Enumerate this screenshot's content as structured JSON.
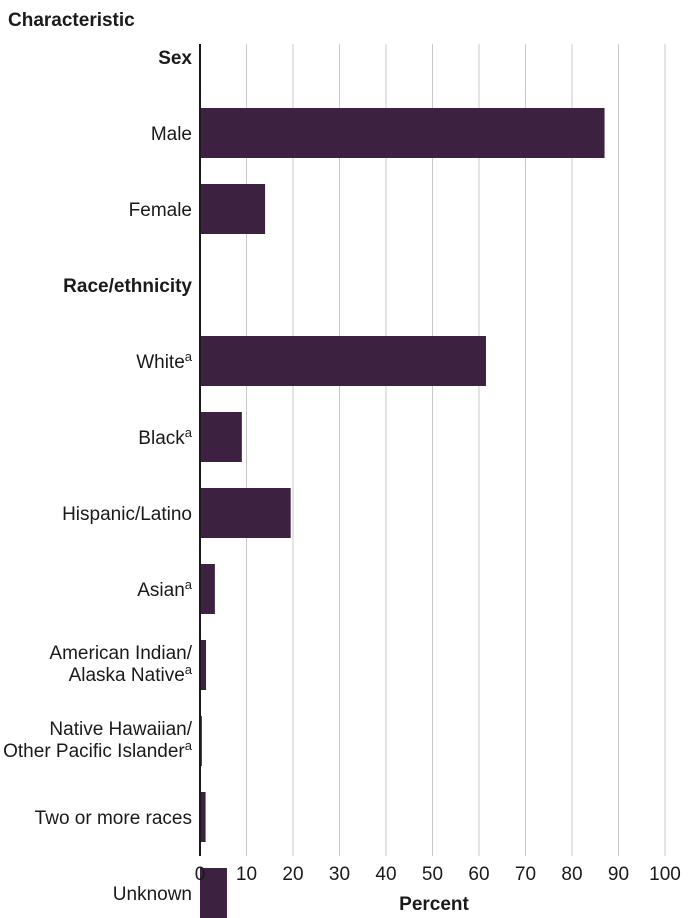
{
  "chart_data": {
    "type": "bar",
    "orientation": "horizontal",
    "title": "Characteristic",
    "xlabel": "Percent",
    "xlim": [
      0,
      100
    ],
    "x_ticks": [
      0,
      10,
      20,
      30,
      40,
      50,
      60,
      70,
      80,
      90,
      100
    ],
    "grid": "vertical",
    "bar_color": "#3d2140",
    "groups": [
      {
        "label": "Sex",
        "categories": [
          {
            "label": "Male",
            "sup": "",
            "value": 87
          },
          {
            "label": "Female",
            "sup": "",
            "value": 14
          }
        ]
      },
      {
        "label": "Race/ethnicity",
        "categories": [
          {
            "label": "White",
            "sup": "a",
            "value": 61.5
          },
          {
            "label": "Black",
            "sup": "a",
            "value": 9
          },
          {
            "label": "Hispanic/Latino",
            "sup": "",
            "value": 19.5
          },
          {
            "label": "Asian",
            "sup": "a",
            "value": 3.2
          },
          {
            "label": "American Indian/",
            "label2": "Alaska Native",
            "sup": "a",
            "value": 1.3
          },
          {
            "label": "Native Hawaiian/",
            "label2": "Other Pacific Islander",
            "sup": "a",
            "value": 0.4
          },
          {
            "label": "Two or more races",
            "sup": "",
            "value": 1.2
          },
          {
            "label": "Unknown",
            "sup": "",
            "value": 5.8
          }
        ]
      }
    ]
  }
}
